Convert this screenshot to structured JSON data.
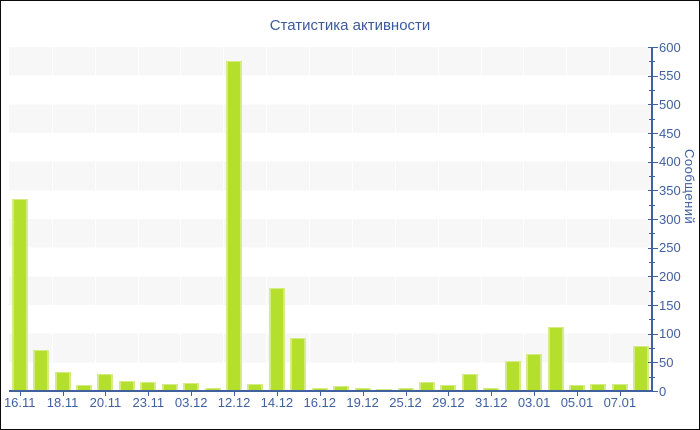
{
  "chart_data": {
    "type": "bar",
    "title": "Статистика активности",
    "ylabel": "Сообщений",
    "xlabel": "",
    "ylim": [
      0,
      600
    ],
    "y_tick_step": 50,
    "y_minor_tick_step": 25,
    "grid": "horizontal-stripes",
    "legend": "none",
    "x_tick_labels": [
      "16.11",
      "18.11",
      "20.11",
      "23.11",
      "03.12",
      "12.12",
      "14.12",
      "16.12",
      "19.12",
      "25.12",
      "29.12",
      "31.12",
      "03.01",
      "05.01",
      "07.01"
    ],
    "x_tick_every": 2,
    "values": [
      335,
      72,
      34,
      11,
      29,
      18,
      16,
      12,
      14,
      6,
      575,
      12,
      180,
      93,
      5,
      8,
      6,
      4,
      6,
      16,
      11,
      30,
      5,
      52,
      64,
      112,
      10,
      12,
      12,
      78
    ],
    "colors": {
      "bar_fill": "#b4df2c",
      "bar_edge": "#d4ec83",
      "axis": "#41619e",
      "tick_label": "#4060a0",
      "title": "#3c5a99",
      "stripe": "#f7f7f7",
      "background": "#ffffff",
      "frame_border": "#0a0a0a"
    }
  }
}
